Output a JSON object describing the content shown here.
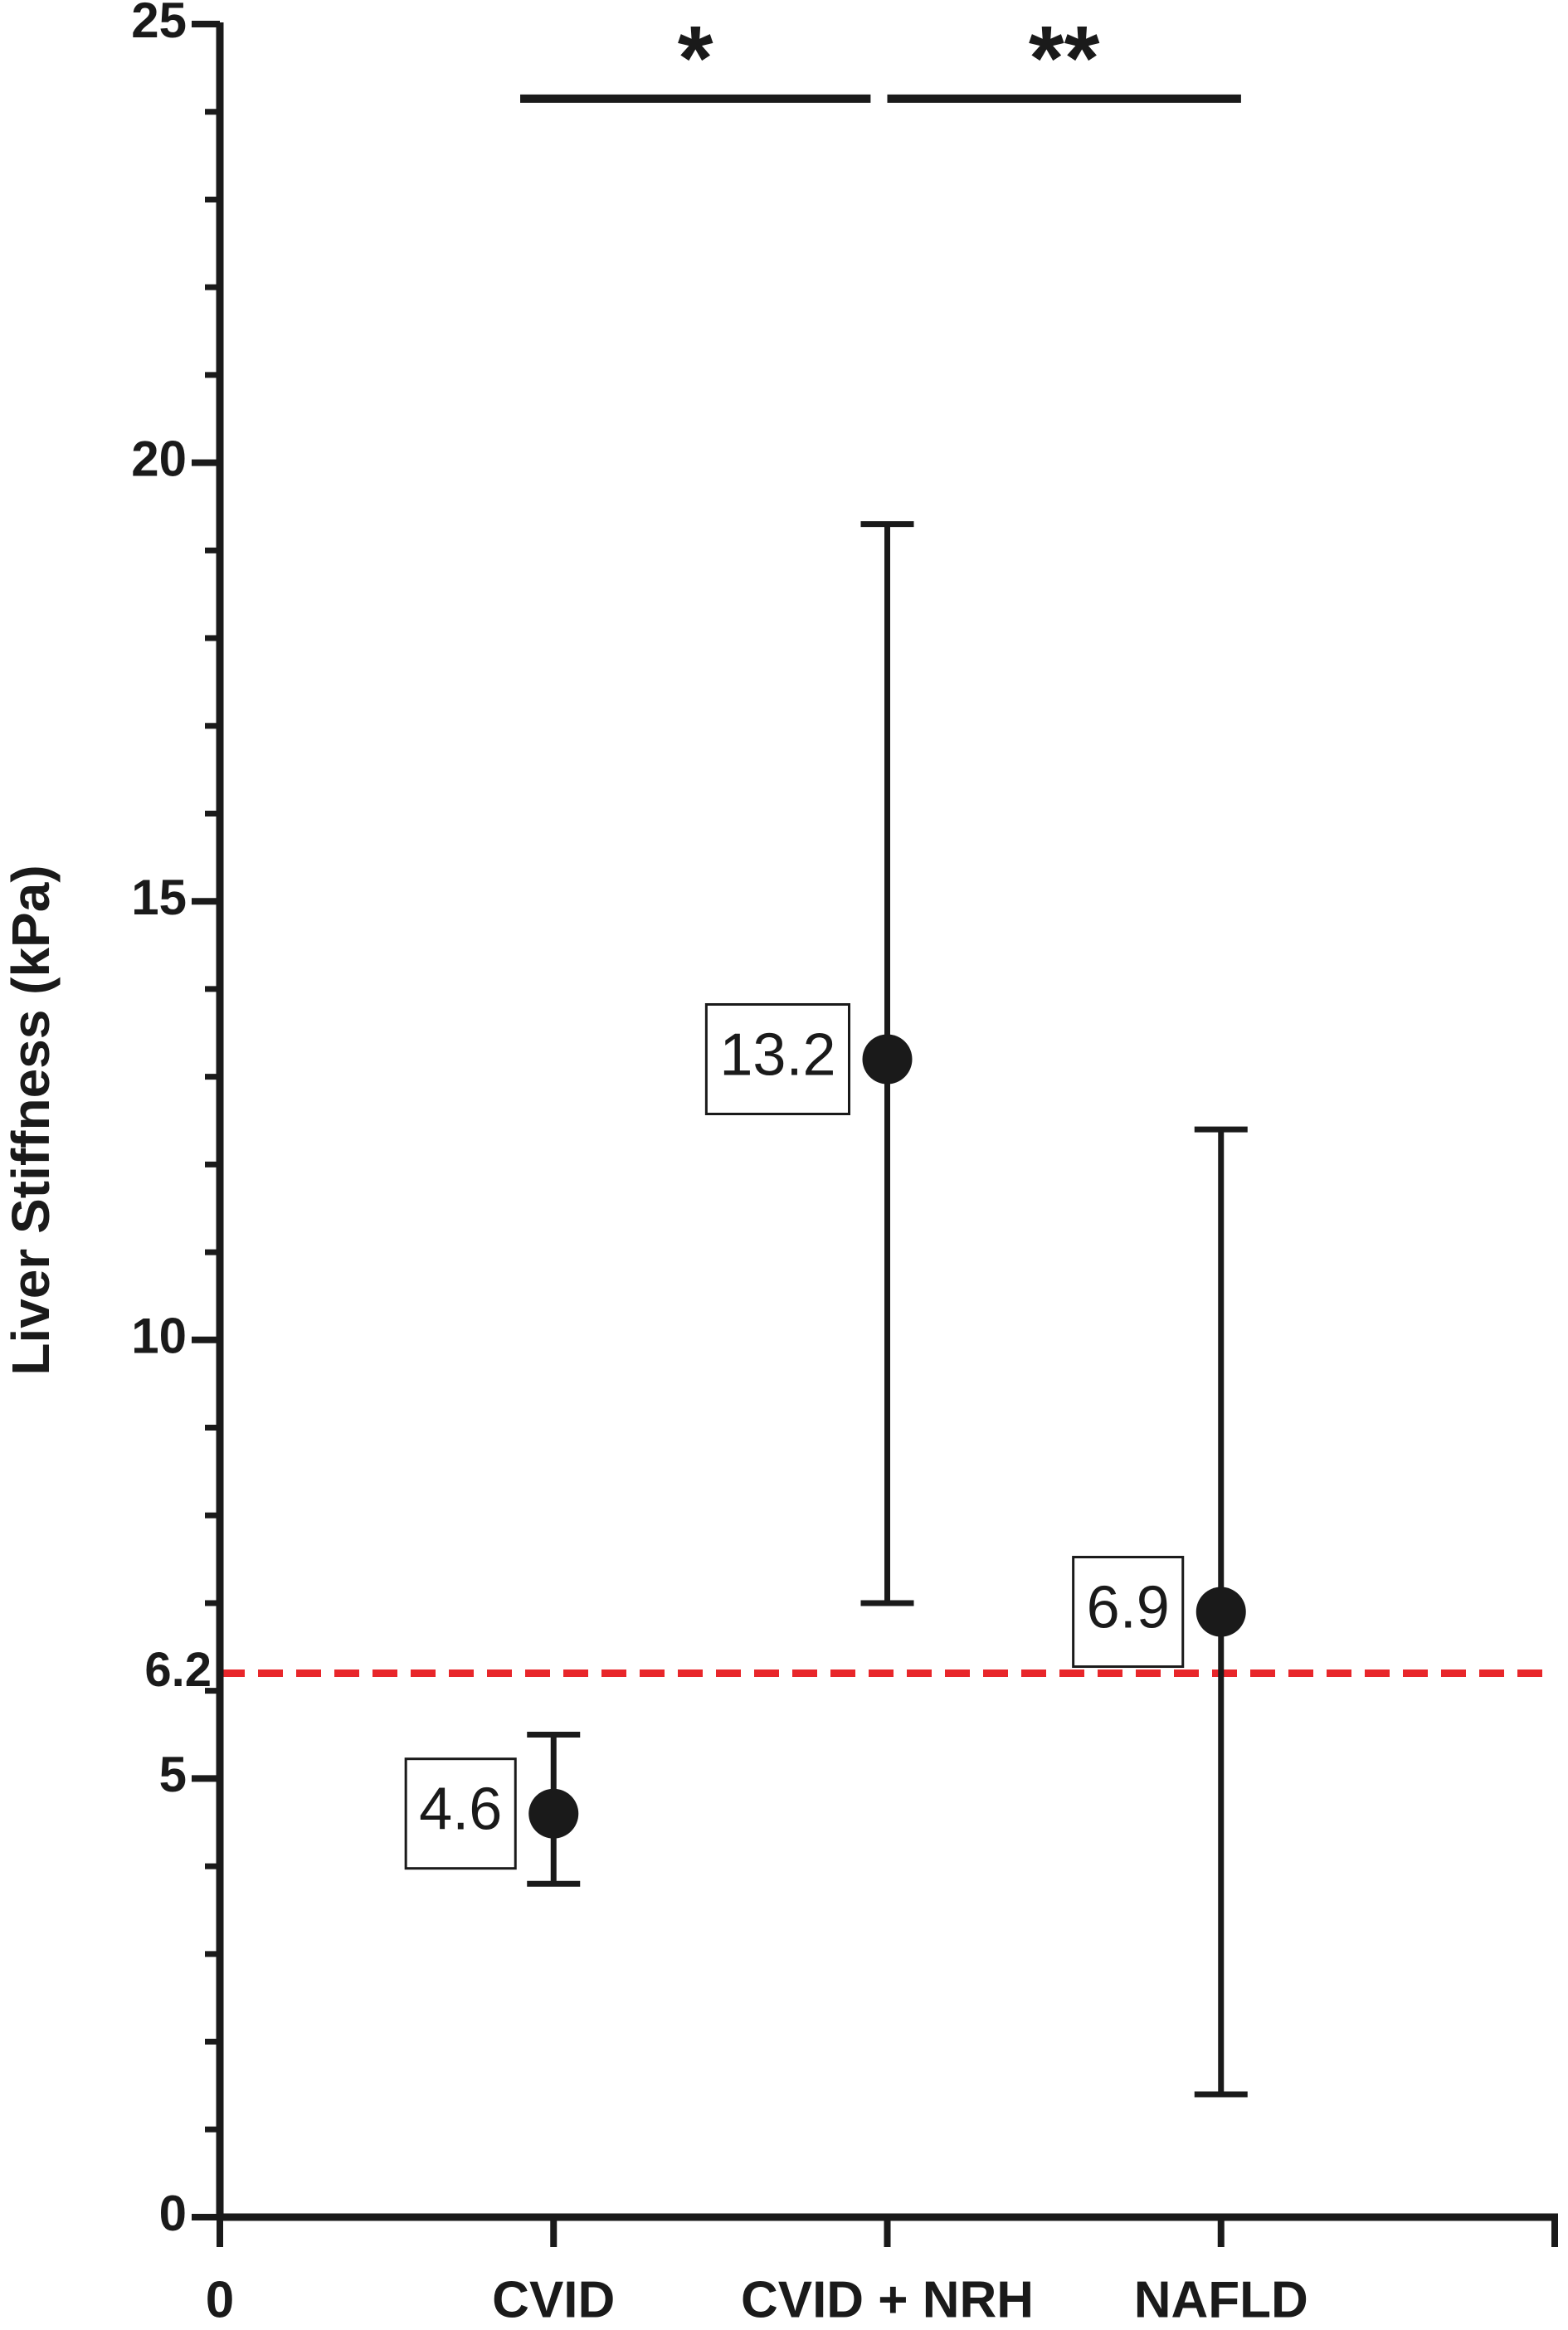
{
  "chart_data": {
    "type": "errorbar_scatter",
    "y_label": "Liver Stiffness (kPa)",
    "categories": [
      "CVID",
      "CVID + NRH",
      "NAFLD"
    ],
    "x": [
      1,
      2,
      3
    ],
    "values": [
      4.6,
      13.2,
      6.9
    ],
    "lower": [
      3.8,
      7.0,
      1.4
    ],
    "upper": [
      5.5,
      19.3,
      12.4
    ],
    "color": "#1a1a1a",
    "xlim": [
      0,
      4
    ],
    "xticks": [
      0,
      {
        "value": 1,
        "label": "CVID"
      },
      {
        "value": 2,
        "label": "CVID + NRH"
      },
      {
        "value": 3,
        "label": "NAFLD"
      },
      {
        "value": 4,
        "label": ""
      }
    ],
    "ylim": [
      0,
      25
    ],
    "yticks": [
      0,
      5,
      10,
      15,
      20,
      25
    ],
    "yminorticks": [
      1,
      2,
      3,
      4,
      6,
      7,
      8,
      9,
      11,
      12,
      13,
      14,
      16,
      17,
      18,
      19,
      21,
      22,
      23,
      24
    ],
    "reference_line": {
      "value": 6.2,
      "color": "#e8262a"
    },
    "significance": [
      {
        "text": "*",
        "x1": 0.9,
        "x2": 1.95,
        "y": 24.15
      },
      {
        "text": "**",
        "x1": 2.0,
        "x2": 3.06,
        "y": 24.15
      }
    ]
  }
}
